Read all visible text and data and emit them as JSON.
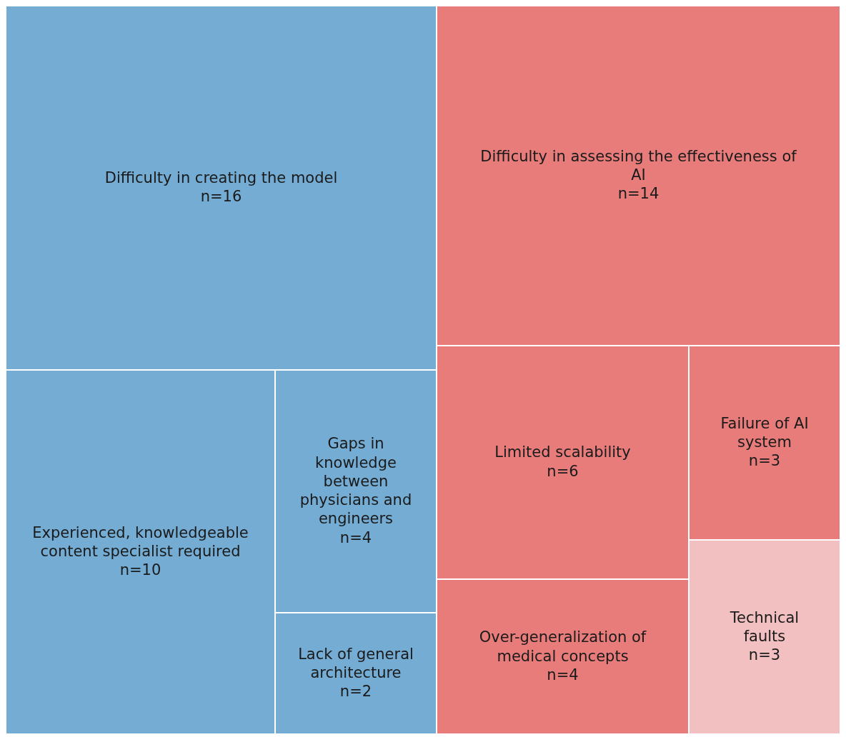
{
  "chart_data": {
    "type": "other",
    "categories": [
      "Difficulty in creating the model",
      "Experienced, knowledgeable content specialist required",
      "Gaps in knowledge between physicians and engineers",
      "Lack of general architecture",
      "Difficulty in assessing the effectiveness of AI",
      "Limited scalability",
      "Over-generalization of medical concepts",
      "Failure of AI system",
      "Technical faults"
    ],
    "series": [
      {
        "color": "#74acd3",
        "values": [
          16,
          10,
          4,
          2,
          null,
          null,
          null,
          null,
          null
        ],
        "value_labels": [
          "n=16",
          "n=10",
          "n=4",
          "n=2",
          null,
          null,
          null,
          null,
          null
        ]
      },
      {
        "colors": [
          null,
          null,
          null,
          null,
          "#e77c7b",
          "#e77c7b",
          "#e77c7b",
          "#e77c7b",
          "#f2c0c0"
        ],
        "values": [
          null,
          null,
          null,
          null,
          14,
          6,
          4,
          3,
          3
        ],
        "value_labels": [
          null,
          null,
          null,
          null,
          "n=14",
          "n=6",
          "n=4",
          "n=3",
          "n=3"
        ]
      }
    ]
  }
}
